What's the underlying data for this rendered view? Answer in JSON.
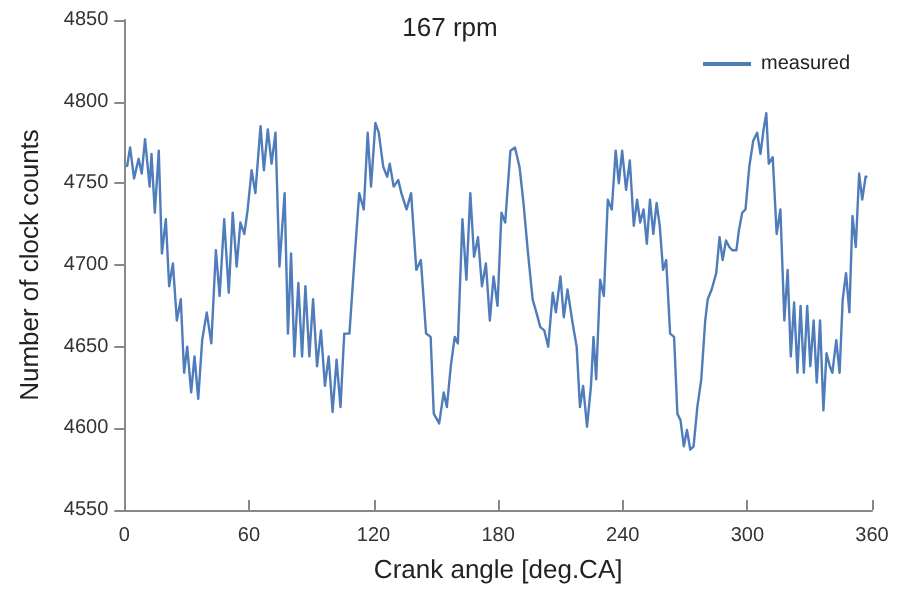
{
  "chart_data": {
    "type": "line",
    "title": "167 rpm",
    "xlabel": "Crank angle [deg.CA]",
    "ylabel": "Number of clock counts",
    "xlim": [
      0,
      360
    ],
    "xticks": [
      0,
      60,
      120,
      180,
      240,
      300,
      360
    ],
    "ylim": [
      4550,
      4850
    ],
    "yticks": [
      4550,
      4600,
      4650,
      4700,
      4750,
      4800,
      4850
    ],
    "grid": false,
    "legend": "top right",
    "marker": "none",
    "line_style": "solid",
    "series": [
      {
        "name": "measured",
        "color": "#4f7cba",
        "x": [
          1.3,
          2.8,
          4.7,
          6.9,
          8.4,
          10,
          12.2,
          13.1,
          14.7,
          16.6,
          18.1,
          20,
          21.6,
          23.4,
          25.3,
          27.2,
          28.8,
          30.3,
          32.2,
          33.8,
          35.6,
          37.5,
          39.7,
          41.9,
          44.1,
          45.9,
          48.1,
          50.3,
          52.2,
          54.1,
          55.9,
          57.8,
          59.4,
          61.3,
          63.1,
          65.6,
          67.2,
          69.1,
          70.9,
          72.8,
          74.7,
          77.2,
          78.8,
          80.3,
          81.9,
          83.8,
          85.6,
          87.2,
          89.1,
          90.9,
          92.8,
          94.7,
          96.6,
          98.4,
          100.3,
          102.2,
          104.1,
          105.9,
          108.4,
          110.6,
          113.1,
          115.3,
          117.2,
          118.8,
          120.9,
          122.5,
          124.7,
          126.6,
          127.8,
          129.7,
          131.9,
          133.4,
          135.9,
          138.1,
          140.6,
          142.8,
          145.3,
          147.5,
          149,
          151.6,
          153.8,
          155.3,
          157.2,
          159.1,
          160.6,
          162.8,
          164.7,
          166.6,
          168.4,
          170.3,
          172.2,
          174.1,
          176,
          177.8,
          179.7,
          181.6,
          183.4,
          185.9,
          188.1,
          190.3,
          192.2,
          194.4,
          196.6,
          198.4,
          200.3,
          202.2,
          204.1,
          206.3,
          207.8,
          210,
          211.6,
          213.4,
          215.9,
          217.8,
          219.4,
          220.9,
          222.8,
          224.7,
          225.9,
          227.2,
          229.1,
          230.9,
          232.8,
          234.7,
          236.6,
          238.1,
          239.7,
          241.6,
          243.4,
          245.3,
          246.9,
          248.4,
          250,
          251.6,
          253.1,
          254.7,
          256.3,
          257.8,
          259.4,
          260.9,
          262.8,
          264.7,
          266.3,
          267.8,
          269.4,
          270.9,
          272.5,
          274.1,
          275.9,
          277.8,
          279.7,
          280.9,
          282.8,
          285,
          286.6,
          288.1,
          289.7,
          291.3,
          292.8,
          294.7,
          295.9,
          297.5,
          299.1,
          300.9,
          302.8,
          304.7,
          306.3,
          307.8,
          309.1,
          310.3,
          312.2,
          314.1,
          315.9,
          317.8,
          319.4,
          320.9,
          322.5,
          324.1,
          325.6,
          327.2,
          328.8,
          330.3,
          331.9,
          333.4,
          335,
          336.6,
          338.1,
          339.7,
          340.9,
          342.8,
          344.4,
          345.9,
          347.5,
          349.1,
          350.6,
          352.2,
          353.8,
          355.3,
          356.9,
          357.8
        ],
        "values": [
          4760,
          4772,
          4753,
          4765,
          4756,
          4777,
          4748,
          4768,
          4732,
          4770,
          4707,
          4728,
          4687,
          4701,
          4666,
          4679,
          4634,
          4650,
          4622,
          4644,
          4618,
          4654,
          4671,
          4652,
          4709,
          4681,
          4728,
          4683,
          4732,
          4699,
          4726,
          4719,
          4734,
          4758,
          4744,
          4785,
          4758,
          4783,
          4762,
          4781,
          4699,
          4744,
          4658,
          4707,
          4644,
          4689,
          4644,
          4687,
          4644,
          4679,
          4638,
          4660,
          4626,
          4644,
          4610,
          4642,
          4613,
          4658,
          4658,
          4699,
          4744,
          4734,
          4781,
          4748,
          4787,
          4781,
          4760,
          4754,
          4762,
          4748,
          4752,
          4744,
          4734,
          4744,
          4697,
          4703,
          4658,
          4656,
          4609,
          4603,
          4622,
          4613,
          4638,
          4656,
          4652,
          4728,
          4691,
          4744,
          4705,
          4717,
          4687,
          4701,
          4666,
          4693,
          4675,
          4732,
          4726,
          4770,
          4772,
          4760,
          4738,
          4707,
          4679,
          4671,
          4662,
          4660,
          4650,
          4683,
          4671,
          4693,
          4668,
          4685,
          4664,
          4650,
          4613,
          4626,
          4601,
          4626,
          4656,
          4630,
          4691,
          4681,
          4740,
          4734,
          4770,
          4750,
          4770,
          4746,
          4764,
          4724,
          4740,
          4726,
          4734,
          4713,
          4740,
          4719,
          4738,
          4724,
          4697,
          4703,
          4658,
          4656,
          4609,
          4605,
          4589,
          4599,
          4587,
          4589,
          4613,
          4630,
          4666,
          4679,
          4685,
          4695,
          4717,
          4703,
          4715,
          4711,
          4709,
          4709,
          4721,
          4732,
          4734,
          4760,
          4776,
          4781,
          4768,
          4783,
          4793,
          4762,
          4766,
          4719,
          4734,
          4666,
          4697,
          4644,
          4677,
          4634,
          4675,
          4634,
          4675,
          4638,
          4666,
          4628,
          4666,
          4611,
          4646,
          4638,
          4634,
          4654,
          4634,
          4679,
          4695,
          4671,
          4730,
          4711,
          4756,
          4740,
          4754,
          4754
        ]
      }
    ]
  }
}
